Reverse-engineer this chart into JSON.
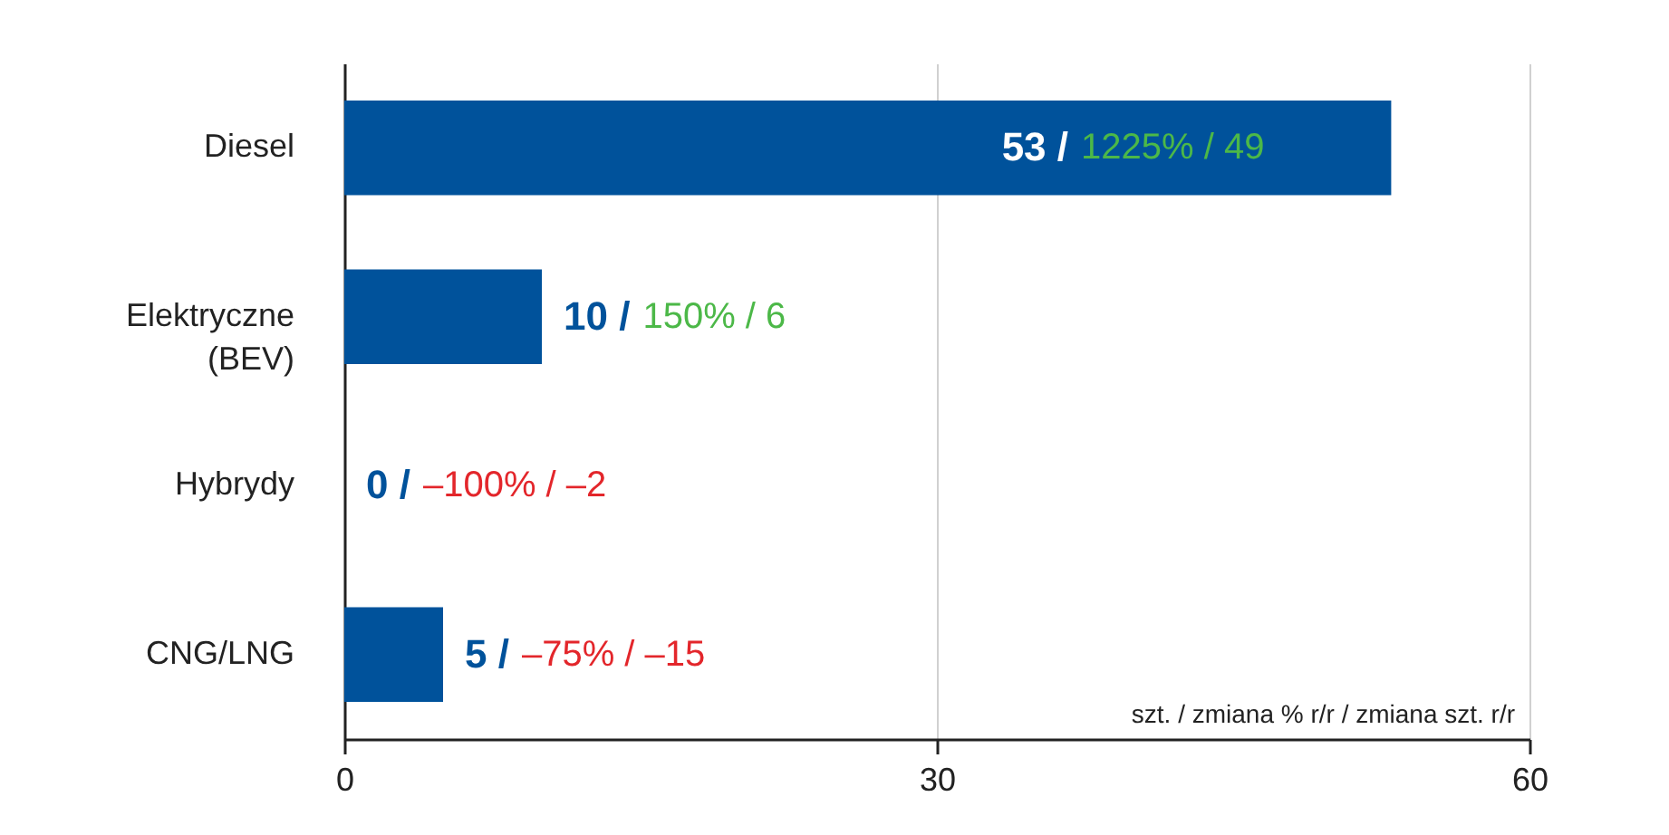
{
  "chart_data": {
    "type": "bar",
    "orientation": "horizontal",
    "categories": [
      "Diesel",
      "Elektryczne (BEV)",
      "Hybrydy",
      "CNG/LNG"
    ],
    "values": [
      53,
      10,
      0,
      5
    ],
    "color": "#00529b",
    "value_labels": [
      "53 / 1225% / 49",
      "10 / 150% / 6",
      "0 / –100% / –2",
      "5 / –75% / –15"
    ],
    "xlim": [
      0,
      60
    ],
    "xticks": [
      0,
      30,
      60
    ],
    "grid": "x",
    "annotations": [
      "szt. / zmiana % r/r / zmiana szt. r/r"
    ]
  }
}
